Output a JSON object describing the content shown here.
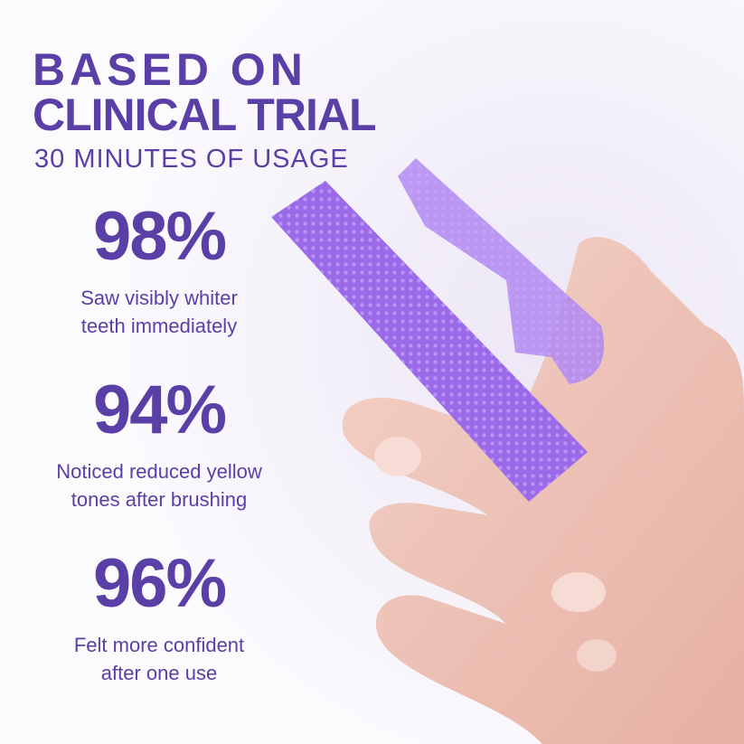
{
  "headline": {
    "line1": "BASED ON",
    "line2": "CLINICAL TRIAL"
  },
  "subtitle": "30 MINUTES OF USAGE",
  "stats": [
    {
      "value": "98%",
      "line1": "Saw visibly whiter",
      "line2": "teeth immediately"
    },
    {
      "value": "94%",
      "line1": "Noticed reduced yellow",
      "line2": "tones after brushing"
    },
    {
      "value": "96%",
      "line1": "Felt more confident",
      "line2": "after one use"
    }
  ],
  "colors": {
    "brand": "#5a3fa6",
    "strip": "#9b6ae8",
    "skin": "#efc4b8"
  }
}
